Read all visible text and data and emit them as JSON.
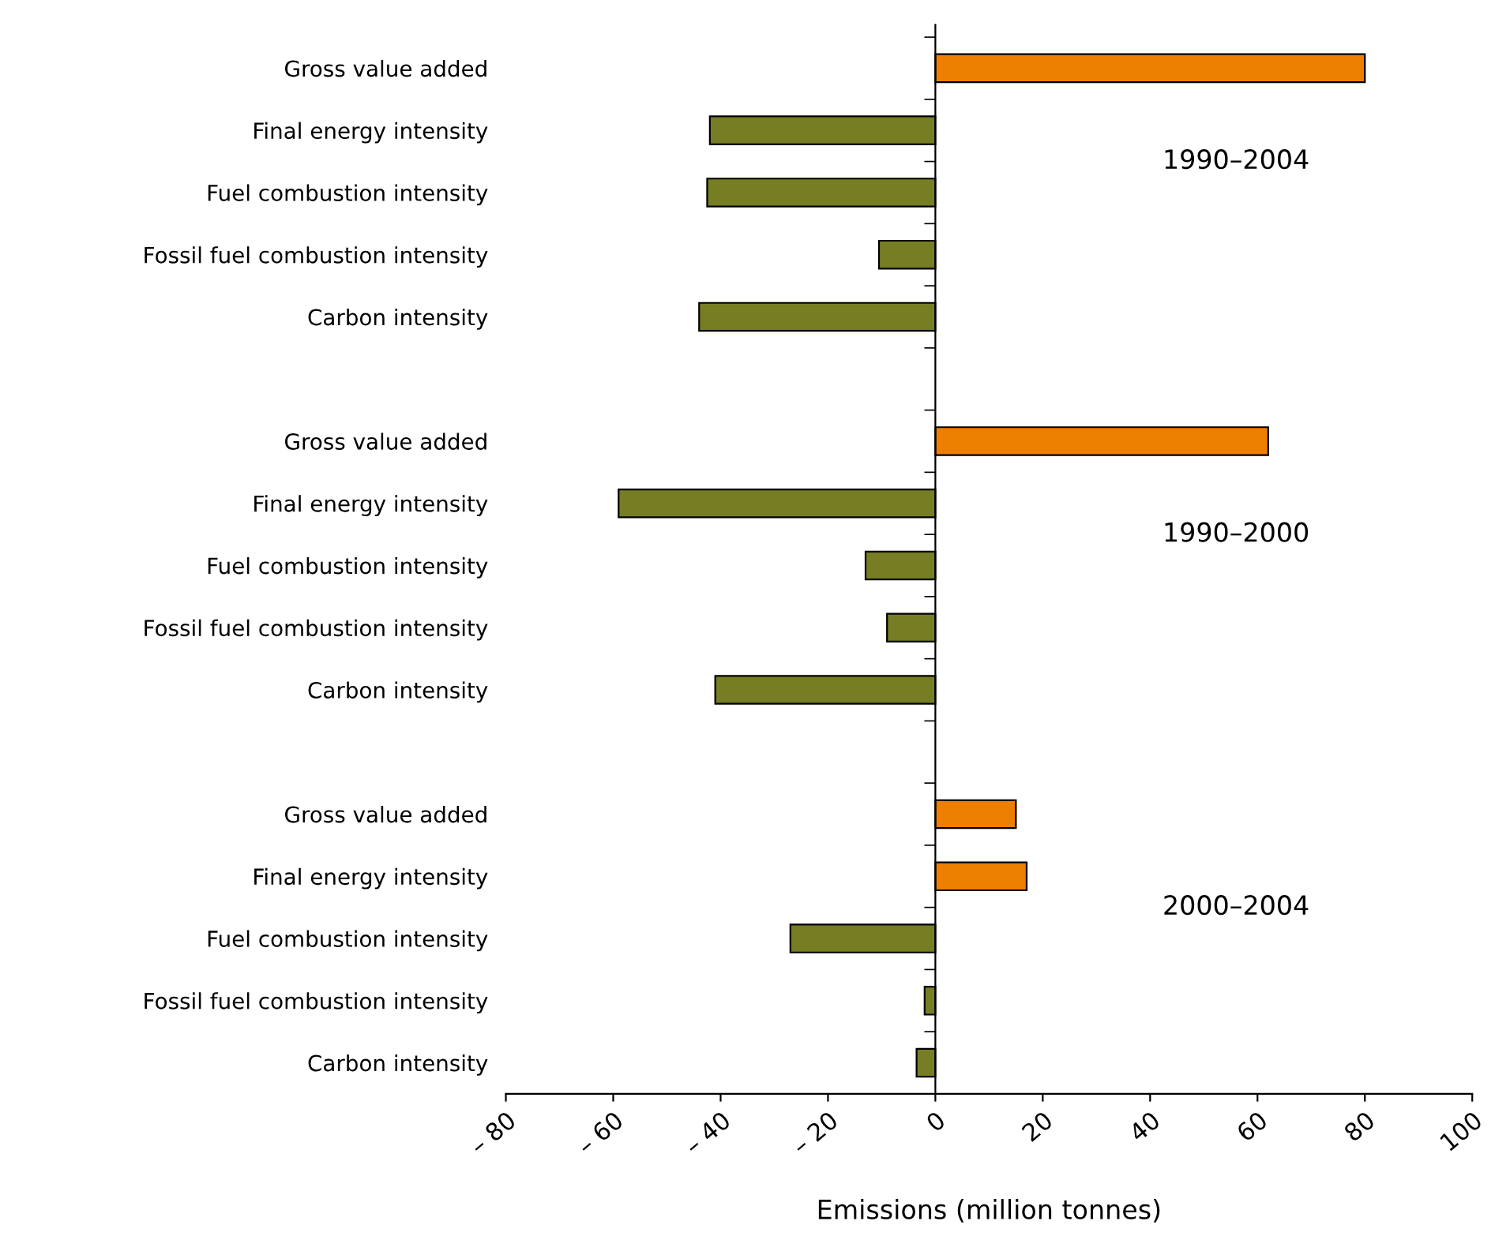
{
  "chart_data": {
    "type": "bar",
    "orientation": "horizontal",
    "xlabel": "Emissions (million tonnes)",
    "categories": [
      "Gross value added",
      "Final energy intensity",
      "Fuel combustion intensity",
      "Fossil fuel combustion intensity",
      "Carbon intensity",
      null,
      "Gross value added",
      "Final energy intensity",
      "Fuel combustion intensity",
      "Fossil fuel combustion intensity",
      "Carbon intensity",
      null,
      "Gross value added",
      "Final energy intensity",
      "Fuel combustion intensity",
      "Fossil fuel combustion intensity",
      "Carbon intensity"
    ],
    "values": [
      80,
      -42,
      -42.5,
      -10.5,
      -44,
      null,
      62,
      -59,
      -13,
      -9,
      -41,
      null,
      15,
      17,
      -27,
      -2,
      -3.5
    ],
    "colors": [
      "#ec7f00",
      "#767d22",
      "#767d22",
      "#767d22",
      "#767d22",
      null,
      "#ec7f00",
      "#767d22",
      "#767d22",
      "#767d22",
      "#767d22",
      null,
      "#ec7f00",
      "#ec7f00",
      "#767d22",
      "#767d22",
      "#767d22"
    ],
    "xlim": [
      -80,
      100
    ],
    "xticks": [
      {
        "value": -80,
        "label": "– 80"
      },
      {
        "value": -60,
        "label": "– 60"
      },
      {
        "value": -40,
        "label": "– 40"
      },
      {
        "value": -20,
        "label": "– 20"
      },
      0,
      20,
      40,
      60,
      80,
      100
    ],
    "annotations": [
      "1990–2004",
      "1990–2000",
      "2000–2004"
    ],
    "legend": false
  }
}
